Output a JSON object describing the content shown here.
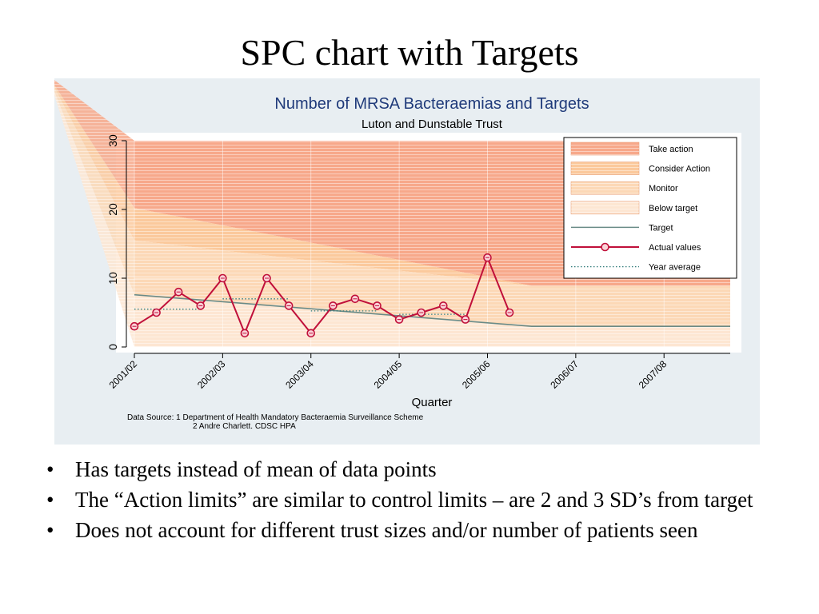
{
  "slide": {
    "title": "SPC chart with Targets",
    "bullets": [
      "Has targets instead of mean of data points",
      "The “Action limits” are similar to control limits – are 2 and 3 SD’s from target",
      "Does not account for different trust sizes and/or number of patients seen"
    ],
    "bullet_glyph": "•"
  },
  "chart_data": {
    "type": "line",
    "title": "Number of MRSA Bacteraemias and Targets",
    "subtitle": "Luton and Dunstable Trust",
    "xlabel": "Quarter",
    "ylabel": "",
    "ylim": [
      0,
      30
    ],
    "yticks": [
      0,
      10,
      20,
      30
    ],
    "xlim": [
      0,
      27
    ],
    "x_tick_positions": [
      0,
      4,
      8,
      12,
      16,
      20,
      24
    ],
    "x_tick_labels": [
      "2001/02",
      "2002/03",
      "2003/04",
      "2004/05",
      "2005/06",
      "2006/07",
      "2007/08"
    ],
    "grid": true,
    "legend_position": "top-right",
    "colors": {
      "take_action": "#f7a88a",
      "consider_action": "#fbc99c",
      "monitor": "#fcd8b6",
      "below_target": "#fde6d2",
      "target": "#6a8b87",
      "actual": "#c0103a",
      "year_average": "#2f7a78",
      "title": "#1f3a7a"
    },
    "legend": [
      {
        "label": "Take action",
        "kind": "band",
        "color_key": "take_action"
      },
      {
        "label": "Consider Action",
        "kind": "band",
        "color_key": "consider_action"
      },
      {
        "label": "Monitor",
        "kind": "band",
        "color_key": "monitor"
      },
      {
        "label": "Below target",
        "kind": "band",
        "color_key": "below_target"
      },
      {
        "label": "Target",
        "kind": "line",
        "color_key": "target"
      },
      {
        "label": "Actual values",
        "kind": "marker-line",
        "color_key": "actual"
      },
      {
        "label": "Year average",
        "kind": "dotted",
        "color_key": "year_average"
      }
    ],
    "bands": {
      "x": [
        0,
        18,
        27
      ],
      "upper_3sd": [
        30,
        12.7,
        12.7
      ],
      "upper_2sd": [
        20.2,
        8.9,
        8.9
      ],
      "upper_1sd": [
        15.5,
        8.9,
        8.9
      ],
      "target": [
        7.6,
        3.0,
        3.0
      ]
    },
    "series": [
      {
        "name": "Actual values",
        "x": [
          0,
          1,
          2,
          3,
          4,
          5,
          6,
          7,
          8,
          9,
          10,
          11,
          12,
          13,
          14,
          15,
          16,
          17
        ],
        "values": [
          3,
          5,
          8,
          6,
          10,
          2,
          10,
          6,
          2,
          6,
          7,
          6,
          4,
          5,
          6,
          4,
          13,
          5
        ]
      }
    ],
    "year_average": [
      {
        "x": [
          0,
          3
        ],
        "value": 5.5
      },
      {
        "x": [
          4,
          7
        ],
        "value": 7.0
      },
      {
        "x": [
          8,
          11
        ],
        "value": 5.25
      },
      {
        "x": [
          12,
          15
        ],
        "value": 4.75
      }
    ],
    "footnote": [
      "Data Source: 1 Department of Health Mandatory Bacteraemia Surveillance Scheme",
      "2 Andre Charlett. CDSC HPA"
    ]
  }
}
